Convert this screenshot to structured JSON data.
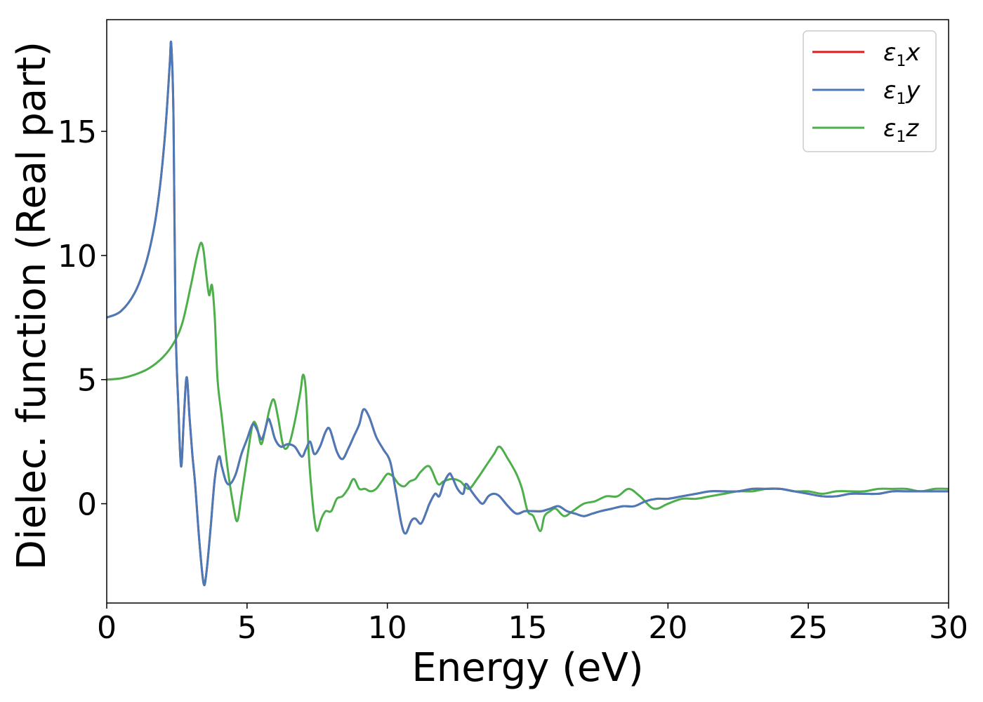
{
  "chart_data": {
    "type": "line",
    "xlabel": "Energy (eV)",
    "ylabel": "Dielec. function (Real part)",
    "xlim": [
      0,
      30
    ],
    "ylim": [
      -4,
      19.5
    ],
    "xticks": [
      0,
      5,
      10,
      15,
      20,
      25,
      30
    ],
    "yticks": [
      0,
      5,
      10,
      15
    ],
    "grid": false,
    "legend_position": "top-right",
    "series": [
      {
        "name": "ε1x",
        "legend_base": "ε",
        "legend_sub": "1",
        "legend_var": "x",
        "color": "#e41a1c",
        "x": [
          0,
          0.5,
          1.0,
          1.4,
          1.7,
          1.9,
          2.05,
          2.15,
          2.25,
          2.3,
          2.38,
          2.45,
          2.55,
          2.65,
          2.75,
          2.85,
          2.95,
          3.05,
          3.15,
          3.3,
          3.45,
          3.55,
          3.7,
          3.85,
          4.0,
          4.1,
          4.25,
          4.4,
          4.6,
          4.8,
          5.0,
          5.2,
          5.35,
          5.5,
          5.6,
          5.75,
          5.85,
          6.0,
          6.2,
          6.45,
          6.7,
          6.95,
          7.1,
          7.25,
          7.4,
          7.6,
          7.8,
          7.95,
          8.2,
          8.4,
          8.6,
          8.8,
          9.0,
          9.15,
          9.35,
          9.6,
          9.85,
          10.1,
          10.3,
          10.5,
          10.65,
          10.85,
          11.0,
          11.2,
          11.4,
          11.5,
          11.7,
          11.85,
          12.0,
          12.2,
          12.3,
          12.5,
          12.7,
          12.8,
          13.0,
          13.2,
          13.4,
          13.6,
          13.8,
          14.0,
          14.3,
          14.6,
          14.9,
          15.2,
          15.5,
          15.8,
          16.1,
          16.4,
          16.7,
          17.0,
          17.3,
          17.6,
          18.0,
          18.4,
          18.8,
          19.2,
          19.6,
          20.0,
          20.5,
          21.0,
          21.5,
          22.0,
          22.5,
          23.0,
          23.5,
          24.0,
          24.5,
          25.0,
          25.5,
          26.0,
          26.5,
          27.0,
          27.5,
          28.0,
          28.5,
          29.0,
          29.5,
          30.0
        ],
        "y": [
          7.5,
          7.75,
          8.5,
          9.7,
          11.2,
          12.8,
          14.5,
          16.0,
          17.8,
          18.5,
          15.5,
          7.5,
          4.0,
          1.5,
          3.5,
          5.1,
          3.5,
          2.0,
          0.8,
          -1.5,
          -3.2,
          -2.8,
          -1.0,
          1.0,
          1.9,
          1.5,
          0.9,
          0.8,
          1.2,
          2.0,
          2.6,
          3.2,
          3.0,
          2.6,
          2.8,
          3.4,
          3.2,
          2.6,
          2.3,
          2.4,
          2.3,
          1.9,
          2.2,
          2.5,
          2.0,
          2.3,
          2.9,
          3.0,
          2.1,
          1.8,
          2.2,
          2.7,
          3.2,
          3.8,
          3.5,
          2.7,
          2.2,
          1.7,
          0.5,
          -0.8,
          -1.2,
          -0.7,
          -0.6,
          -0.8,
          -0.3,
          0.0,
          0.4,
          0.3,
          0.8,
          1.2,
          1.1,
          0.6,
          0.4,
          0.8,
          0.5,
          0.2,
          0.0,
          0.3,
          0.4,
          0.3,
          -0.1,
          -0.4,
          -0.3,
          -0.3,
          -0.3,
          -0.2,
          -0.1,
          -0.3,
          -0.4,
          -0.5,
          -0.4,
          -0.3,
          -0.2,
          -0.1,
          -0.1,
          0.1,
          0.2,
          0.2,
          0.3,
          0.4,
          0.5,
          0.5,
          0.5,
          0.6,
          0.6,
          0.6,
          0.5,
          0.4,
          0.3,
          0.3,
          0.4,
          0.4,
          0.4,
          0.5,
          0.5,
          0.5,
          0.5,
          0.5
        ]
      },
      {
        "name": "ε1y",
        "legend_base": "ε",
        "legend_sub": "1",
        "legend_var": "y",
        "color": "#4a7ab8",
        "x": [
          0,
          0.5,
          1.0,
          1.4,
          1.7,
          1.9,
          2.05,
          2.15,
          2.25,
          2.3,
          2.38,
          2.45,
          2.55,
          2.65,
          2.75,
          2.85,
          2.95,
          3.05,
          3.15,
          3.3,
          3.45,
          3.55,
          3.7,
          3.85,
          4.0,
          4.1,
          4.25,
          4.4,
          4.6,
          4.8,
          5.0,
          5.2,
          5.35,
          5.5,
          5.6,
          5.75,
          5.85,
          6.0,
          6.2,
          6.45,
          6.7,
          6.95,
          7.1,
          7.25,
          7.4,
          7.6,
          7.8,
          7.95,
          8.2,
          8.4,
          8.6,
          8.8,
          9.0,
          9.15,
          9.35,
          9.6,
          9.85,
          10.1,
          10.3,
          10.5,
          10.65,
          10.85,
          11.0,
          11.2,
          11.4,
          11.5,
          11.7,
          11.85,
          12.0,
          12.2,
          12.3,
          12.5,
          12.7,
          12.8,
          13.0,
          13.2,
          13.4,
          13.6,
          13.8,
          14.0,
          14.3,
          14.6,
          14.9,
          15.2,
          15.5,
          15.8,
          16.1,
          16.4,
          16.7,
          17.0,
          17.3,
          17.6,
          18.0,
          18.4,
          18.8,
          19.2,
          19.6,
          20.0,
          20.5,
          21.0,
          21.5,
          22.0,
          22.5,
          23.0,
          23.5,
          24.0,
          24.5,
          25.0,
          25.5,
          26.0,
          26.5,
          27.0,
          27.5,
          28.0,
          28.5,
          29.0,
          29.5,
          30.0
        ],
        "y": [
          7.5,
          7.75,
          8.5,
          9.7,
          11.2,
          12.8,
          14.5,
          16.0,
          17.8,
          18.5,
          15.5,
          7.5,
          4.0,
          1.5,
          3.5,
          5.1,
          3.5,
          2.0,
          0.8,
          -1.5,
          -3.2,
          -2.8,
          -1.0,
          1.0,
          1.9,
          1.5,
          0.9,
          0.8,
          1.2,
          2.0,
          2.6,
          3.2,
          3.0,
          2.6,
          2.8,
          3.4,
          3.2,
          2.6,
          2.3,
          2.4,
          2.3,
          1.9,
          2.2,
          2.5,
          2.0,
          2.3,
          2.9,
          3.0,
          2.1,
          1.8,
          2.2,
          2.7,
          3.2,
          3.8,
          3.5,
          2.7,
          2.2,
          1.7,
          0.5,
          -0.8,
          -1.2,
          -0.7,
          -0.6,
          -0.8,
          -0.3,
          0.0,
          0.4,
          0.3,
          0.8,
          1.2,
          1.1,
          0.6,
          0.4,
          0.8,
          0.5,
          0.2,
          0.0,
          0.3,
          0.4,
          0.3,
          -0.1,
          -0.4,
          -0.3,
          -0.3,
          -0.3,
          -0.2,
          -0.1,
          -0.3,
          -0.4,
          -0.5,
          -0.4,
          -0.3,
          -0.2,
          -0.1,
          -0.1,
          0.1,
          0.2,
          0.2,
          0.3,
          0.4,
          0.5,
          0.5,
          0.5,
          0.6,
          0.6,
          0.6,
          0.5,
          0.4,
          0.3,
          0.3,
          0.4,
          0.4,
          0.4,
          0.5,
          0.5,
          0.5,
          0.5,
          0.5
        ]
      },
      {
        "name": "ε1z",
        "legend_base": "ε",
        "legend_sub": "1",
        "legend_var": "z",
        "color": "#4daf4a",
        "x": [
          0,
          0.5,
          1.0,
          1.5,
          2.0,
          2.4,
          2.7,
          3.0,
          3.2,
          3.35,
          3.45,
          3.55,
          3.65,
          3.75,
          3.85,
          3.95,
          4.1,
          4.3,
          4.5,
          4.65,
          4.8,
          5.0,
          5.2,
          5.35,
          5.5,
          5.65,
          5.8,
          5.95,
          6.1,
          6.3,
          6.5,
          6.7,
          6.9,
          7.0,
          7.1,
          7.2,
          7.3,
          7.4,
          7.5,
          7.65,
          7.8,
          8.0,
          8.2,
          8.4,
          8.6,
          8.8,
          9.0,
          9.2,
          9.4,
          9.6,
          9.8,
          10.0,
          10.2,
          10.4,
          10.6,
          10.8,
          11.0,
          11.2,
          11.5,
          11.8,
          12.0,
          12.3,
          12.6,
          12.9,
          13.2,
          13.5,
          13.8,
          14.0,
          14.3,
          14.6,
          14.8,
          15.0,
          15.2,
          15.45,
          15.6,
          15.8,
          16.0,
          16.3,
          16.6,
          17.0,
          17.4,
          17.8,
          18.2,
          18.6,
          19.0,
          19.5,
          20.0,
          20.5,
          21.0,
          21.5,
          22.0,
          22.5,
          23.0,
          23.5,
          24.0,
          24.5,
          25.0,
          25.5,
          26.0,
          26.5,
          27.0,
          27.5,
          28.0,
          28.5,
          29.0,
          29.5,
          30.0
        ],
        "y": [
          5.0,
          5.05,
          5.2,
          5.45,
          5.9,
          6.5,
          7.3,
          8.8,
          9.9,
          10.5,
          10.2,
          9.2,
          8.4,
          8.8,
          7.5,
          5.0,
          3.5,
          1.5,
          0.0,
          -0.7,
          0.3,
          1.8,
          3.2,
          3.1,
          2.4,
          3.0,
          3.8,
          4.2,
          3.5,
          2.3,
          2.4,
          3.3,
          4.5,
          5.2,
          4.5,
          2.0,
          0.5,
          -0.6,
          -1.1,
          -0.6,
          -0.3,
          -0.3,
          0.2,
          0.3,
          0.6,
          1.0,
          0.6,
          0.6,
          0.5,
          0.6,
          0.9,
          1.2,
          1.1,
          0.8,
          0.7,
          0.9,
          1.0,
          1.3,
          1.5,
          0.8,
          0.9,
          1.0,
          0.9,
          0.6,
          1.0,
          1.5,
          2.0,
          2.3,
          1.8,
          1.2,
          0.6,
          -0.3,
          -0.5,
          -1.1,
          -0.5,
          -0.3,
          -0.2,
          -0.5,
          -0.3,
          0.0,
          0.1,
          0.3,
          0.3,
          0.6,
          0.3,
          -0.2,
          0.0,
          0.2,
          0.2,
          0.3,
          0.4,
          0.5,
          0.5,
          0.6,
          0.6,
          0.5,
          0.5,
          0.4,
          0.5,
          0.5,
          0.5,
          0.6,
          0.6,
          0.6,
          0.5,
          0.6,
          0.6
        ]
      }
    ]
  }
}
